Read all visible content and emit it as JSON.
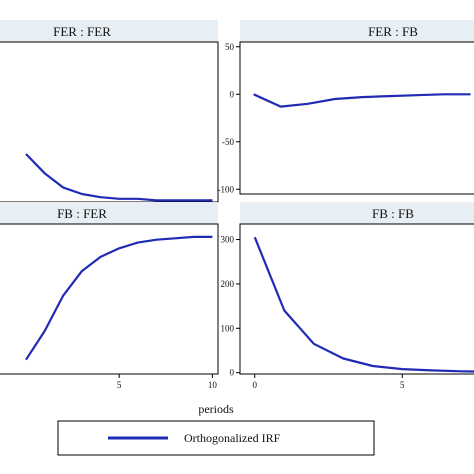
{
  "colors": {
    "line": "#1f2bb5",
    "strip": "#e8eff4",
    "frame": "#000000",
    "background": "#ffffff"
  },
  "xlabel": "periods",
  "legend": {
    "label": "Orthogonalized IRF",
    "placement": "bottom-center"
  },
  "chart_data": [
    {
      "type": "line",
      "title": "FER : FER",
      "xlim": [
        -1.5,
        10.3
      ],
      "x": [
        -1,
        0,
        1,
        2,
        3,
        4,
        5,
        6,
        7,
        8,
        9,
        10
      ],
      "x_ticks": [
        5,
        10
      ],
      "y_ticks": [],
      "series": [
        {
          "values": [
            null,
            0.3,
            0.18,
            0.09,
            0.05,
            0.03,
            0.02,
            0.02,
            0.01,
            0.01,
            0.01,
            0.01
          ]
        }
      ],
      "ylim": [
        0,
        1
      ],
      "grid": false
    },
    {
      "type": "line",
      "title": "FER : FB",
      "xlim": [
        -0.5,
        8.2
      ],
      "x": [
        0,
        1,
        2,
        3,
        4,
        5,
        6,
        7,
        8
      ],
      "x_ticks": [],
      "y_ticks": [
        50,
        0,
        -50,
        -100
      ],
      "series": [
        {
          "values": [
            0,
            -13,
            -10,
            -5,
            -3,
            -2,
            -1,
            0,
            0
          ]
        }
      ],
      "ylim": [
        -105,
        55
      ],
      "grid": false
    },
    {
      "type": "line",
      "title": "FB : FER",
      "xlim": [
        -1.5,
        10.3
      ],
      "x": [
        -1,
        0,
        1,
        2,
        3,
        4,
        5,
        6,
        7,
        8,
        9,
        10
      ],
      "x_ticks": [
        5,
        10
      ],
      "y_ticks": [],
      "series": [
        {
          "values": [
            null,
            0.1,
            0.3,
            0.55,
            0.72,
            0.82,
            0.88,
            0.92,
            0.94,
            0.95,
            0.96,
            0.96
          ]
        }
      ],
      "ylim": [
        0,
        1.05
      ],
      "grid": false
    },
    {
      "type": "line",
      "title": "FB : FB",
      "xlim": [
        -0.5,
        7.5
      ],
      "x": [
        0,
        1,
        2,
        3,
        4,
        5,
        6,
        7,
        8
      ],
      "x_ticks": [
        0,
        5
      ],
      "y_ticks": [
        300,
        200,
        100,
        0
      ],
      "series": [
        {
          "values": [
            305,
            140,
            65,
            32,
            15,
            8,
            5,
            3,
            2
          ]
        }
      ],
      "ylim": [
        -3,
        335
      ],
      "grid": false
    }
  ]
}
